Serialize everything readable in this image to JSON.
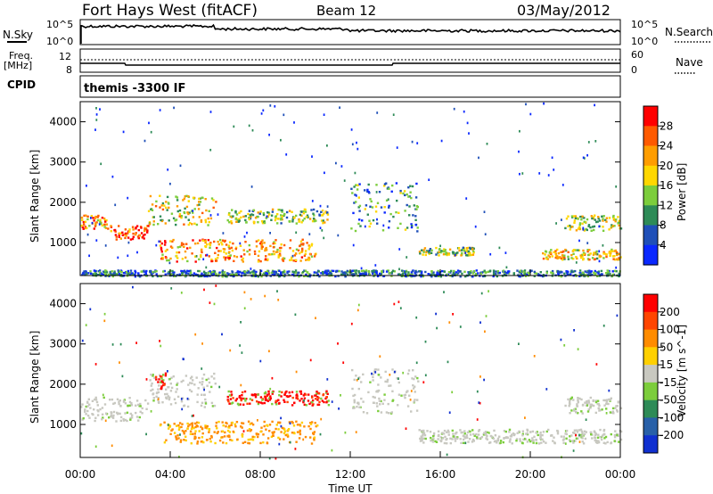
{
  "header": {
    "title": "Fort Hays West (fitACF)",
    "beam": "Beam 12",
    "date": "03/May/2012"
  },
  "top_panels": {
    "nsky_label": "N.Sky",
    "nsky_ticks": [
      "10^5",
      "10^0"
    ],
    "nsearch_label": "N.Search",
    "nsearch_ticks": [
      "10^5",
      "10^0"
    ],
    "freq_label": "Freq.",
    "freq_unit": "[MHz]",
    "freq_ticks": [
      "12",
      "8"
    ],
    "nave_label": "Nave",
    "nave_ticks": [
      "60",
      "0"
    ],
    "cpid_label": "CPID",
    "cpid_value": "themis -3300 IF"
  },
  "chart_data": [
    {
      "type": "heatmap",
      "name": "power-panel",
      "ylabel": "Slant Range [km]",
      "yticks": [
        1000,
        2000,
        3000,
        4000
      ],
      "ylim": [
        180,
        4500
      ],
      "xlim": [
        0,
        24
      ],
      "colorbar": {
        "label": "Power [dB]",
        "ticks": [
          "4",
          "8",
          "12",
          "16",
          "20",
          "24",
          "28"
        ],
        "colors": [
          "#0a28ff",
          "#1f4fb8",
          "#2e8b57",
          "#7ccd3c",
          "#ffd700",
          "#ff9d00",
          "#ff5a00",
          "#ff0000"
        ]
      },
      "bands": [
        {
          "t0": 0.0,
          "t1": 1.3,
          "r0": 1350,
          "r1": 1700,
          "level": 0.7
        },
        {
          "t0": 1.3,
          "t1": 3.0,
          "r0": 1100,
          "r1": 1450,
          "level": 0.85
        },
        {
          "t0": 3.0,
          "t1": 6.0,
          "r0": 1450,
          "r1": 2200,
          "level": 0.55
        },
        {
          "t0": 3.5,
          "t1": 10.5,
          "r0": 550,
          "r1": 1100,
          "level": 0.7
        },
        {
          "t0": 6.5,
          "t1": 11.0,
          "r0": 1500,
          "r1": 1850,
          "level": 0.45
        },
        {
          "t0": 12.0,
          "t1": 15.0,
          "r0": 1300,
          "r1": 2500,
          "level": 0.3
        },
        {
          "t0": 15.0,
          "t1": 17.5,
          "r0": 700,
          "r1": 900,
          "level": 0.45
        },
        {
          "t0": 20.5,
          "t1": 24.0,
          "r0": 600,
          "r1": 850,
          "level": 0.6
        },
        {
          "t0": 21.5,
          "t1": 24.0,
          "r0": 1300,
          "r1": 1700,
          "level": 0.5
        },
        {
          "t0": 0.0,
          "t1": 24.0,
          "r0": 180,
          "r1": 330,
          "level": 0.25
        }
      ]
    },
    {
      "type": "heatmap",
      "name": "velocity-panel",
      "ylabel": "Slant Range [km]",
      "xlabel": "Time UT",
      "xticks": [
        "00:00",
        "04:00",
        "08:00",
        "12:00",
        "16:00",
        "20:00",
        "00:00"
      ],
      "yticks": [
        1000,
        2000,
        3000,
        4000
      ],
      "ylim": [
        180,
        4500
      ],
      "xlim": [
        0,
        24
      ],
      "colorbar": {
        "label": "Velocity [m s^-1]",
        "ticks": [
          "200",
          "100",
          "50",
          "15",
          "-15",
          "-50",
          "-100",
          "-200"
        ],
        "colors": [
          "#1030d0",
          "#2860a8",
          "#2e8b57",
          "#7ccd3c",
          "#c8c8c0",
          "#ffd000",
          "#ff8c00",
          "#ff4500",
          "#ff0000"
        ]
      },
      "bands": [
        {
          "t0": 0.0,
          "t1": 3.0,
          "r0": 1100,
          "r1": 1700,
          "kind": "ground"
        },
        {
          "t0": 3.0,
          "t1": 6.0,
          "r0": 1450,
          "r1": 2300,
          "kind": "ground"
        },
        {
          "t0": 3.3,
          "t1": 3.8,
          "r0": 1900,
          "r1": 2300,
          "kind": "red"
        },
        {
          "t0": 3.5,
          "t1": 10.5,
          "r0": 550,
          "r1": 1100,
          "kind": "orange"
        },
        {
          "t0": 6.5,
          "t1": 11.0,
          "r0": 1500,
          "r1": 1850,
          "kind": "red"
        },
        {
          "t0": 12.0,
          "t1": 15.0,
          "r0": 1300,
          "r1": 2400,
          "kind": "ground"
        },
        {
          "t0": 15.0,
          "t1": 24.0,
          "r0": 550,
          "r1": 900,
          "kind": "ground"
        },
        {
          "t0": 21.5,
          "t1": 24.0,
          "r0": 1300,
          "r1": 1700,
          "kind": "ground"
        }
      ]
    }
  ]
}
